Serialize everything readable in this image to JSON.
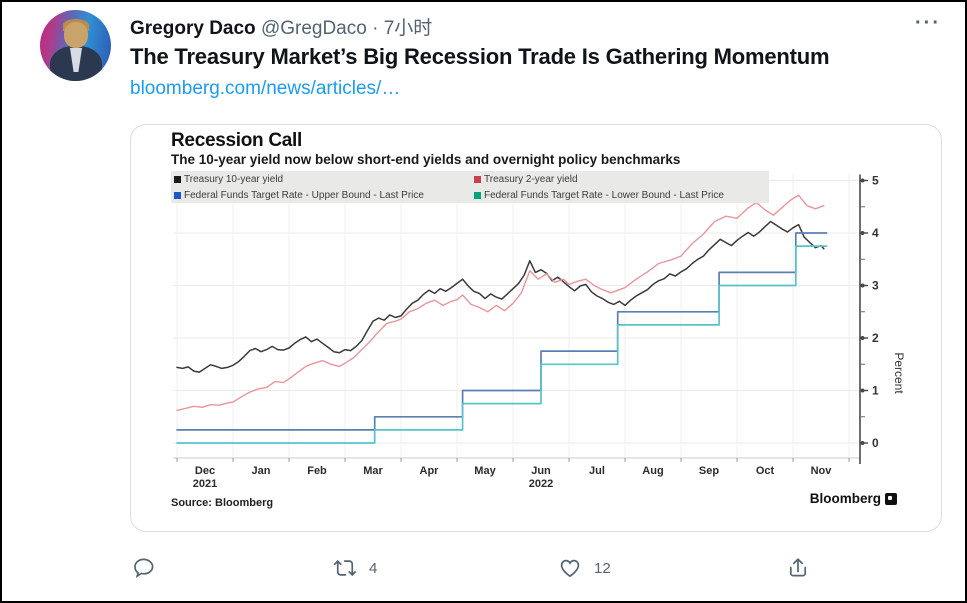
{
  "tweet": {
    "author": "Gregory Daco",
    "handle": "@GregDaco",
    "separator": "·",
    "timestamp": "7小时",
    "text": "The Treasury Market’s Big Recession Trade Is Gathering Momentum",
    "link": "bloomberg.com/news/articles/…",
    "more_label": "···",
    "actions": {
      "reply_count": "",
      "retweet_count": "4",
      "like_count": "12"
    }
  },
  "icons": {
    "reply": "speech-bubble",
    "retweet": "cycle-arrows",
    "like": "heart-outline",
    "share": "arrow-up-from-tray",
    "more": "three-dots"
  },
  "colors": {
    "link_blue": "#1d9bf0",
    "muted_gray": "#536471",
    "text_black": "#0f1419"
  },
  "chart_data": {
    "type": "line",
    "title": "Recession Call",
    "subtitle": "The 10-year yield now below short-end yields and overnight policy benchmarks",
    "source": "Source: Bloomberg",
    "brand": "Bloomberg",
    "ylabel_right": "Percent",
    "x_unit": "months since Dec 1 2021",
    "xlim": [
      0,
      12.2
    ],
    "ylim": [
      -0.3,
      5.3
    ],
    "y_ticks": [
      0,
      1,
      2,
      3,
      4,
      5
    ],
    "x_tick_labels": [
      "Dec",
      "Jan",
      "Feb",
      "Mar",
      "Apr",
      "May",
      "Jun",
      "Jul",
      "Aug",
      "Sep",
      "Oct",
      "Nov"
    ],
    "x_tick_sublabels": [
      "2021",
      "",
      "",
      "",
      "",
      "",
      "2022",
      "",
      "",
      "",
      "",
      ""
    ],
    "grid": true,
    "legend_position": "top",
    "legend": [
      {
        "label": "Treasury 10-year yield",
        "color": "#1a1a1a"
      },
      {
        "label": "Treasury 2-year yield",
        "color": "#c8414f"
      },
      {
        "label": "Federal Funds Target Rate - Upper Bound - Last Price",
        "color": "#1f55c4"
      },
      {
        "label": "Federal Funds Target Rate - Lower Bound - Last Price",
        "color": "#00a27b"
      }
    ],
    "series": [
      {
        "name": "Treasury 10-year yield",
        "color": "#3a3a3a",
        "width": 1.5,
        "points": [
          [
            0,
            1.44
          ],
          [
            0.1,
            1.42
          ],
          [
            0.2,
            1.45
          ],
          [
            0.3,
            1.37
          ],
          [
            0.4,
            1.35
          ],
          [
            0.5,
            1.42
          ],
          [
            0.6,
            1.49
          ],
          [
            0.7,
            1.46
          ],
          [
            0.8,
            1.42
          ],
          [
            0.9,
            1.44
          ],
          [
            1,
            1.48
          ],
          [
            1.1,
            1.55
          ],
          [
            1.2,
            1.65
          ],
          [
            1.3,
            1.76
          ],
          [
            1.4,
            1.8
          ],
          [
            1.5,
            1.74
          ],
          [
            1.6,
            1.78
          ],
          [
            1.7,
            1.84
          ],
          [
            1.8,
            1.78
          ],
          [
            1.9,
            1.77
          ],
          [
            2,
            1.81
          ],
          [
            2.1,
            1.9
          ],
          [
            2.2,
            1.97
          ],
          [
            2.3,
            2.02
          ],
          [
            2.4,
            1.93
          ],
          [
            2.5,
            1.98
          ],
          [
            2.6,
            1.9
          ],
          [
            2.7,
            1.82
          ],
          [
            2.8,
            1.74
          ],
          [
            2.9,
            1.72
          ],
          [
            3,
            1.78
          ],
          [
            3.1,
            1.76
          ],
          [
            3.2,
            1.84
          ],
          [
            3.3,
            1.95
          ],
          [
            3.4,
            2.14
          ],
          [
            3.5,
            2.32
          ],
          [
            3.6,
            2.38
          ],
          [
            3.7,
            2.34
          ],
          [
            3.8,
            2.44
          ],
          [
            3.9,
            2.39
          ],
          [
            4,
            2.42
          ],
          [
            4.1,
            2.55
          ],
          [
            4.2,
            2.66
          ],
          [
            4.3,
            2.72
          ],
          [
            4.4,
            2.83
          ],
          [
            4.5,
            2.91
          ],
          [
            4.6,
            2.85
          ],
          [
            4.7,
            2.94
          ],
          [
            4.8,
            2.89
          ],
          [
            4.9,
            2.96
          ],
          [
            5,
            3.04
          ],
          [
            5.1,
            3.12
          ],
          [
            5.2,
            2.99
          ],
          [
            5.3,
            2.89
          ],
          [
            5.4,
            2.85
          ],
          [
            5.5,
            2.75
          ],
          [
            5.6,
            2.84
          ],
          [
            5.7,
            2.78
          ],
          [
            5.8,
            2.74
          ],
          [
            5.9,
            2.84
          ],
          [
            6,
            2.94
          ],
          [
            6.1,
            3.04
          ],
          [
            6.2,
            3.2
          ],
          [
            6.3,
            3.47
          ],
          [
            6.4,
            3.25
          ],
          [
            6.5,
            3.3
          ],
          [
            6.6,
            3.23
          ],
          [
            6.7,
            3.09
          ],
          [
            6.8,
            3.16
          ],
          [
            6.9,
            3.07
          ],
          [
            7,
            2.98
          ],
          [
            7.1,
            2.9
          ],
          [
            7.2,
            2.99
          ],
          [
            7.3,
            3.02
          ],
          [
            7.4,
            2.88
          ],
          [
            7.5,
            2.8
          ],
          [
            7.6,
            2.75
          ],
          [
            7.7,
            2.68
          ],
          [
            7.8,
            2.64
          ],
          [
            7.9,
            2.7
          ],
          [
            8,
            2.62
          ],
          [
            8.1,
            2.72
          ],
          [
            8.2,
            2.8
          ],
          [
            8.3,
            2.86
          ],
          [
            8.4,
            2.92
          ],
          [
            8.5,
            3.02
          ],
          [
            8.6,
            3.09
          ],
          [
            8.7,
            3.13
          ],
          [
            8.8,
            3.22
          ],
          [
            8.9,
            3.18
          ],
          [
            9,
            3.26
          ],
          [
            9.1,
            3.32
          ],
          [
            9.2,
            3.42
          ],
          [
            9.3,
            3.5
          ],
          [
            9.4,
            3.56
          ],
          [
            9.5,
            3.68
          ],
          [
            9.6,
            3.78
          ],
          [
            9.7,
            3.88
          ],
          [
            9.8,
            3.82
          ],
          [
            9.9,
            3.76
          ],
          [
            10,
            3.86
          ],
          [
            10.1,
            3.94
          ],
          [
            10.2,
            4.01
          ],
          [
            10.3,
            3.94
          ],
          [
            10.4,
            4.02
          ],
          [
            10.5,
            4.12
          ],
          [
            10.6,
            4.22
          ],
          [
            10.7,
            4.15
          ],
          [
            10.8,
            4.08
          ],
          [
            10.9,
            4.02
          ],
          [
            11,
            4.1
          ],
          [
            11.1,
            4.16
          ],
          [
            11.2,
            3.92
          ],
          [
            11.3,
            3.82
          ],
          [
            11.4,
            3.72
          ],
          [
            11.5,
            3.76
          ],
          [
            11.55,
            3.7
          ]
        ]
      },
      {
        "name": "Treasury 2-year yield",
        "color": "#e9959c",
        "width": 1.4,
        "points": [
          [
            0,
            0.62
          ],
          [
            0.15,
            0.66
          ],
          [
            0.3,
            0.7
          ],
          [
            0.45,
            0.68
          ],
          [
            0.6,
            0.73
          ],
          [
            0.75,
            0.72
          ],
          [
            0.9,
            0.76
          ],
          [
            1,
            0.78
          ],
          [
            1.15,
            0.88
          ],
          [
            1.3,
            0.97
          ],
          [
            1.45,
            1.03
          ],
          [
            1.6,
            1.06
          ],
          [
            1.75,
            1.17
          ],
          [
            1.9,
            1.15
          ],
          [
            2,
            1.22
          ],
          [
            2.15,
            1.34
          ],
          [
            2.3,
            1.46
          ],
          [
            2.45,
            1.52
          ],
          [
            2.6,
            1.57
          ],
          [
            2.75,
            1.5
          ],
          [
            2.9,
            1.46
          ],
          [
            3,
            1.52
          ],
          [
            3.15,
            1.62
          ],
          [
            3.3,
            1.78
          ],
          [
            3.45,
            1.94
          ],
          [
            3.6,
            2.12
          ],
          [
            3.75,
            2.28
          ],
          [
            3.9,
            2.32
          ],
          [
            4,
            2.36
          ],
          [
            4.15,
            2.5
          ],
          [
            4.3,
            2.56
          ],
          [
            4.45,
            2.66
          ],
          [
            4.6,
            2.72
          ],
          [
            4.75,
            2.62
          ],
          [
            4.9,
            2.7
          ],
          [
            5,
            2.73
          ],
          [
            5.1,
            2.82
          ],
          [
            5.25,
            2.64
          ],
          [
            5.4,
            2.58
          ],
          [
            5.55,
            2.5
          ],
          [
            5.7,
            2.62
          ],
          [
            5.85,
            2.52
          ],
          [
            6,
            2.66
          ],
          [
            6.15,
            2.86
          ],
          [
            6.3,
            3.28
          ],
          [
            6.45,
            3.12
          ],
          [
            6.6,
            3.22
          ],
          [
            6.75,
            3.06
          ],
          [
            6.9,
            3.12
          ],
          [
            7,
            3.02
          ],
          [
            7.15,
            3.08
          ],
          [
            7.3,
            3.12
          ],
          [
            7.45,
            3.0
          ],
          [
            7.6,
            2.92
          ],
          [
            7.75,
            2.86
          ],
          [
            7.9,
            2.92
          ],
          [
            8,
            2.96
          ],
          [
            8.2,
            3.12
          ],
          [
            8.4,
            3.26
          ],
          [
            8.6,
            3.42
          ],
          [
            8.8,
            3.48
          ],
          [
            9,
            3.56
          ],
          [
            9.2,
            3.8
          ],
          [
            9.4,
            3.98
          ],
          [
            9.6,
            4.22
          ],
          [
            9.8,
            4.32
          ],
          [
            10,
            4.28
          ],
          [
            10.2,
            4.48
          ],
          [
            10.35,
            4.58
          ],
          [
            10.5,
            4.44
          ],
          [
            10.65,
            4.34
          ],
          [
            10.8,
            4.48
          ],
          [
            10.95,
            4.62
          ],
          [
            11.1,
            4.72
          ],
          [
            11.25,
            4.52
          ],
          [
            11.4,
            4.46
          ],
          [
            11.55,
            4.52
          ]
        ]
      },
      {
        "name": "Federal Funds Target Rate - Upper Bound - Last Price",
        "color": "#5b7fb3",
        "width": 1.7,
        "points": [
          [
            0,
            0.25
          ],
          [
            3.53,
            0.25
          ],
          [
            3.53,
            0.5
          ],
          [
            5.1,
            0.5
          ],
          [
            5.1,
            1.0
          ],
          [
            6.5,
            1.0
          ],
          [
            6.5,
            1.75
          ],
          [
            7.87,
            1.75
          ],
          [
            7.87,
            2.5
          ],
          [
            9.68,
            2.5
          ],
          [
            9.68,
            3.25
          ],
          [
            11.05,
            3.25
          ],
          [
            11.05,
            4.0
          ],
          [
            11.6,
            4.0
          ]
        ]
      },
      {
        "name": "Federal Funds Target Rate - Lower Bound - Last Price",
        "color": "#57c4ca",
        "width": 1.7,
        "points": [
          [
            0,
            0.0
          ],
          [
            3.53,
            0.0
          ],
          [
            3.53,
            0.25
          ],
          [
            5.1,
            0.25
          ],
          [
            5.1,
            0.75
          ],
          [
            6.5,
            0.75
          ],
          [
            6.5,
            1.5
          ],
          [
            7.87,
            1.5
          ],
          [
            7.87,
            2.25
          ],
          [
            9.68,
            2.25
          ],
          [
            9.68,
            3.0
          ],
          [
            11.05,
            3.0
          ],
          [
            11.05,
            3.75
          ],
          [
            11.6,
            3.75
          ]
        ]
      }
    ]
  }
}
